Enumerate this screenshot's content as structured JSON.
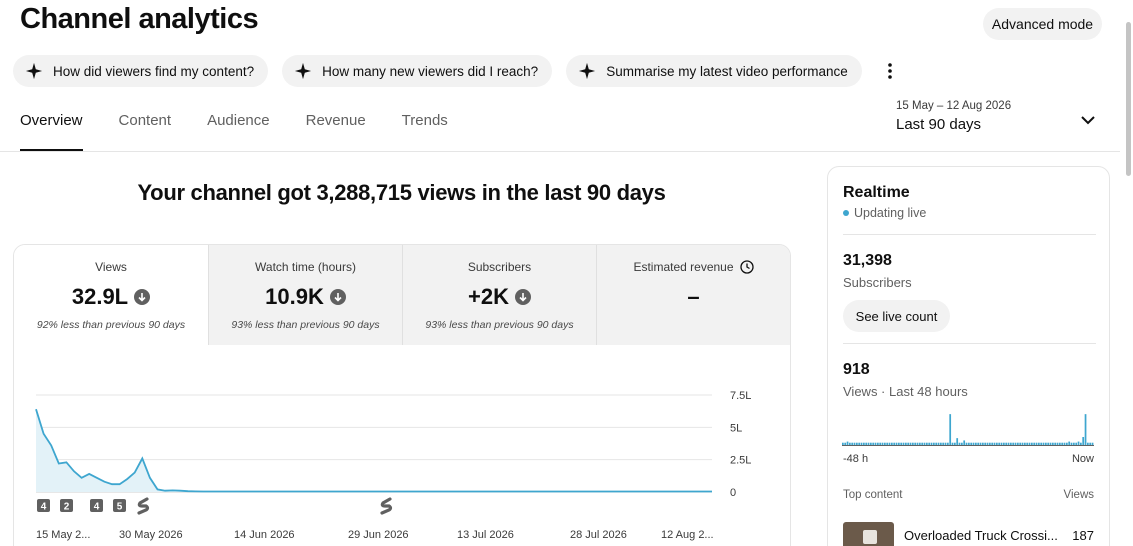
{
  "header": {
    "title": "Channel analytics",
    "advanced_mode": "Advanced mode"
  },
  "chips": [
    {
      "label": "How did viewers find my content?"
    },
    {
      "label": "How many new viewers did I reach?"
    },
    {
      "label": "Summarise my latest video performance"
    }
  ],
  "tabs": [
    "Overview",
    "Content",
    "Audience",
    "Revenue",
    "Trends"
  ],
  "date_range": {
    "dates": "15 May – 12 Aug 2026",
    "label": "Last 90 days"
  },
  "headline": "Your channel got 3,288,715 views in the last 90 days",
  "metrics": [
    {
      "label": "Views",
      "value": "32.9L",
      "note": "92% less than previous 90 days"
    },
    {
      "label": "Watch time (hours)",
      "value": "10.9K",
      "note": "93% less than previous 90 days"
    },
    {
      "label": "Subscribers",
      "value": "+2K",
      "note": "93% less than previous 90 days"
    },
    {
      "label": "Estimated revenue",
      "value": "–",
      "note": ""
    }
  ],
  "chart_data": {
    "type": "area",
    "y_tick_labels": [
      "7.5L",
      "5L",
      "2.5L",
      "0"
    ],
    "ylim": [
      0,
      750000
    ],
    "x_tick_labels": [
      "15 May 2...",
      "30 May 2026",
      "14 Jun 2026",
      "29 Jun 2026",
      "13 Jul 2026",
      "28 Jul 2026",
      "12 Aug 2..."
    ],
    "markers": [
      "4",
      "2",
      "4",
      "5"
    ],
    "values": [
      640000,
      450000,
      360000,
      220000,
      230000,
      160000,
      110000,
      140000,
      110000,
      80000,
      60000,
      60000,
      100000,
      150000,
      260000,
      110000,
      20000,
      10000,
      12000,
      10000,
      6000,
      5000,
      4000,
      4000,
      4000,
      4000,
      4000,
      4000,
      4000,
      4000,
      4000,
      4000,
      4000,
      4000,
      4000,
      4000,
      4000,
      4000,
      4000,
      4000,
      4000,
      4000,
      4000,
      4000,
      4000,
      4000,
      4000,
      4000,
      4000,
      4000,
      4000,
      4000,
      4000,
      4000,
      4000,
      4000,
      4000,
      4000,
      4000,
      4000,
      4000,
      4000,
      4000,
      4000,
      4000,
      4000,
      4000,
      4000,
      4000,
      4000,
      4000,
      4000,
      4000,
      4000,
      4000,
      4000,
      4000,
      4000,
      4000,
      4000,
      4000,
      4000,
      4000,
      4000,
      4000,
      4000,
      4000,
      4000,
      4000,
      4000
    ]
  },
  "realtime": {
    "title": "Realtime",
    "live": "Updating live",
    "subscribers": "31,398",
    "subscribers_label": "Subscribers",
    "live_count_btn": "See live count",
    "views": "918",
    "views_label": "Views · Last 48 hours",
    "bars": [
      2,
      2,
      3,
      2,
      2,
      2,
      2,
      2,
      2,
      2,
      2,
      2,
      2,
      2,
      2,
      2,
      2,
      2,
      2,
      2,
      2,
      2,
      2,
      2,
      2,
      2,
      2,
      2,
      2,
      2,
      2,
      2,
      2,
      2,
      2,
      2,
      2,
      2,
      2,
      2,
      2,
      2,
      2,
      2,
      2,
      2,
      27,
      2,
      2,
      6,
      2,
      2,
      4,
      2,
      2,
      2,
      2,
      2,
      2,
      2,
      2,
      2,
      2,
      2,
      2,
      2,
      2,
      2,
      2,
      2,
      2,
      2,
      2,
      2,
      2,
      2,
      2,
      2,
      2,
      2,
      2,
      2,
      2,
      2,
      2,
      2,
      2,
      2,
      2,
      2,
      2,
      2,
      2,
      2,
      2,
      2,
      2,
      3,
      2,
      2,
      2,
      3,
      2,
      7,
      27,
      2,
      2,
      2
    ],
    "start_label": "-48 h",
    "end_label": "Now",
    "top_content": "Top content",
    "views_col": "Views",
    "video_title": "Overloaded Truck Crossi...",
    "video_views": "187"
  }
}
